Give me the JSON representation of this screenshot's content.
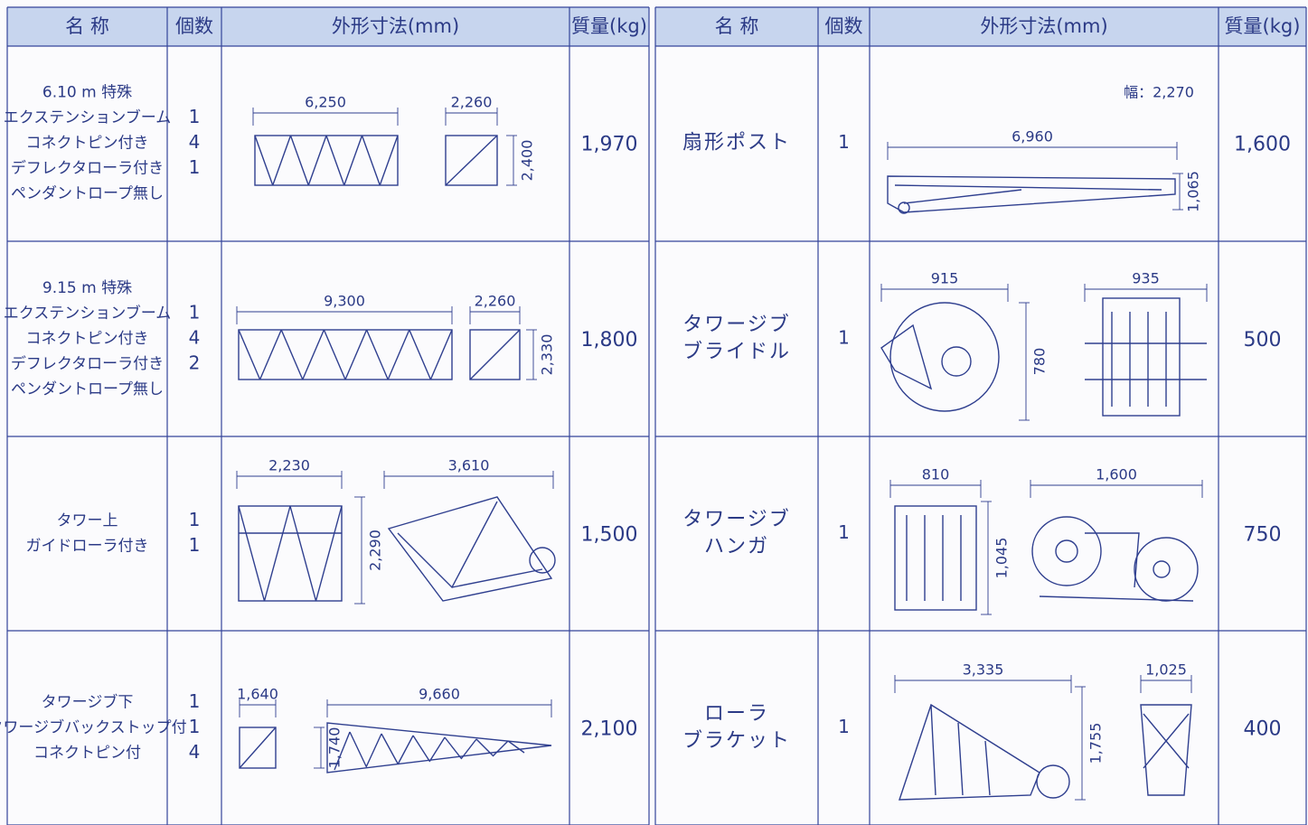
{
  "left_table": {
    "headers": [
      "名 称",
      "個数",
      "外形寸法(mm)",
      "質量(kg)"
    ],
    "rows": [
      {
        "name": [
          "6.10 m 特殊",
          "エクステンションブーム",
          "コネクトピン付き",
          "デフレクタローラ付き",
          "ペンダントロープ無し"
        ],
        "count": [
          "1",
          "4",
          "1"
        ],
        "dimensions": [
          "6,250",
          "2,260",
          "2,400"
        ],
        "mass": "1,970"
      },
      {
        "name": [
          "9.15 m 特殊",
          "エクステンションブーム",
          "コネクトピン付き",
          "デフレクタローラ付き",
          "ペンダントロープ無し"
        ],
        "count": [
          "1",
          "4",
          "2"
        ],
        "dimensions": [
          "9,300",
          "2,260",
          "2,330"
        ],
        "mass": "1,800"
      },
      {
        "name": [
          "タワー上",
          "ガイドローラ付き"
        ],
        "count": [
          "1",
          "1"
        ],
        "dimensions": [
          "2,230",
          "2,290",
          "3,610"
        ],
        "mass": "1,500"
      },
      {
        "name": [
          "タワージブ下",
          "タワージブバックストップ付",
          "コネクトピン付"
        ],
        "count": [
          "1",
          "1",
          "4"
        ],
        "dimensions": [
          "1,640",
          "1,740",
          "9,660"
        ],
        "mass": "2,100"
      }
    ]
  },
  "right_table": {
    "headers": [
      "名 称",
      "個数",
      "外形寸法(mm)",
      "質量(kg)"
    ],
    "rows": [
      {
        "name": [
          "扇形ポスト"
        ],
        "count": [
          "1"
        ],
        "dimensions": [
          "幅：2,270",
          "6,960",
          "1,065"
        ],
        "mass": "1,600"
      },
      {
        "name": [
          "タワージブ",
          "ブライドル"
        ],
        "count": [
          "1"
        ],
        "dimensions": [
          "915",
          "780",
          "935"
        ],
        "mass": "500"
      },
      {
        "name": [
          "タワージブ",
          "ハンガ"
        ],
        "count": [
          "1"
        ],
        "dimensions": [
          "810",
          "1,045",
          "1,600"
        ],
        "mass": "750"
      },
      {
        "name": [
          "ローラ",
          "ブラケット"
        ],
        "count": [
          "1"
        ],
        "dimensions": [
          "3,335",
          "1,755",
          "1,025"
        ],
        "mass": "400"
      }
    ]
  }
}
